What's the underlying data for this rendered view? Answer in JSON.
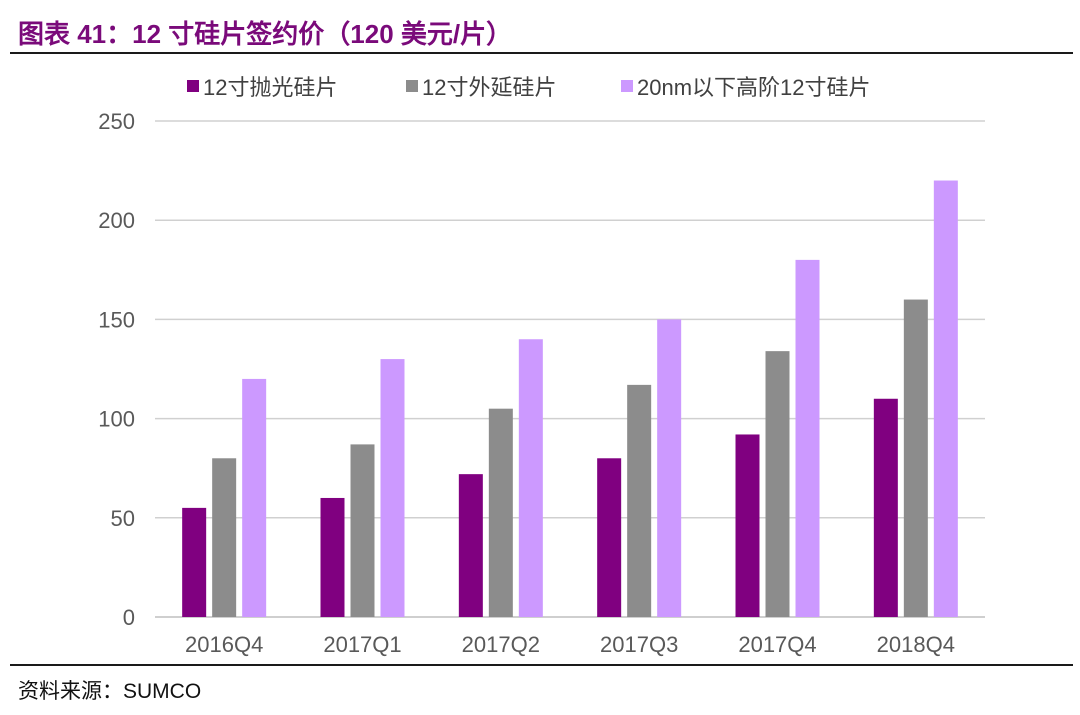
{
  "figure": {
    "title": "图表 41：12 寸硅片签约价（120 美元/片）",
    "source": "资料来源：SUMCO"
  },
  "colors": {
    "title": "#7a0a7a",
    "series": [
      "#800080",
      "#8c8c8c",
      "#cc99ff"
    ],
    "grid": "#d0d0d0",
    "axis_text": "#595959"
  },
  "chart_data": {
    "type": "bar",
    "title": "",
    "xlabel": "",
    "ylabel": "",
    "categories": [
      "2016Q4",
      "2017Q1",
      "2017Q2",
      "2017Q3",
      "2017Q4",
      "2018Q4"
    ],
    "series": [
      {
        "name": "12寸抛光硅片",
        "values": [
          55,
          60,
          72,
          80,
          92,
          110
        ]
      },
      {
        "name": "12寸外延硅片",
        "values": [
          80,
          87,
          105,
          117,
          134,
          160
        ]
      },
      {
        "name": "20nm以下高阶12寸硅片",
        "values": [
          120,
          130,
          140,
          150,
          180,
          220
        ]
      }
    ],
    "ylim": [
      0,
      250
    ],
    "yticks": [
      0,
      50,
      100,
      150,
      200,
      250
    ],
    "grid": true,
    "legend_position": "top"
  }
}
